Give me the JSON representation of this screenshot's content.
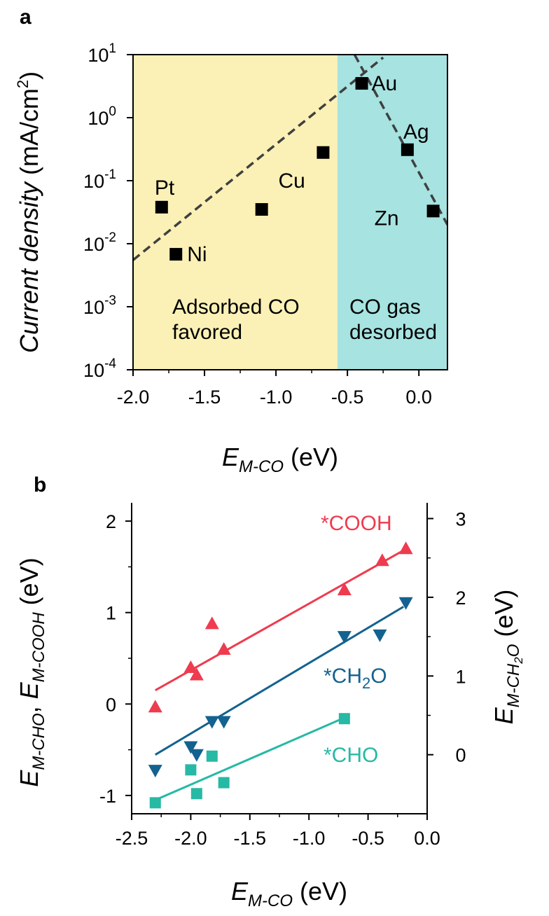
{
  "colors": {
    "adsorbed_region": "#fbf1b6",
    "desorbed_region": "#a6e3e1",
    "cooh": "#ef3b4f",
    "ch2o": "#13628f",
    "cho": "#26b9a5",
    "trend_dashed": "#404040"
  },
  "chart_data": [
    {
      "panel": "a",
      "type": "scatter",
      "x_label": {
        "main": "E",
        "sub": "M-CO",
        "unit": " (eV)"
      },
      "y_label": {
        "italic": "Current density",
        "unit": " (mA/cm",
        "sup": "2",
        "close": ")"
      },
      "xlim": [
        -2.0,
        0.2
      ],
      "ylim_log10": [
        -4,
        1
      ],
      "y_scale": "log",
      "x_ticks": [
        "-2.0",
        "-1.5",
        "-1.0",
        "-0.5",
        "0.0"
      ],
      "x_tick_values": [
        -2.0,
        -1.5,
        -1.0,
        -0.5,
        0.0
      ],
      "y_ticks": [
        {
          "base": "10",
          "exp": "1",
          "value": 1
        },
        {
          "base": "10",
          "exp": "0",
          "value": 0
        },
        {
          "base": "10",
          "exp": "-1",
          "value": -1
        },
        {
          "base": "10",
          "exp": "-2",
          "value": -2
        },
        {
          "base": "10",
          "exp": "-3",
          "value": -3
        },
        {
          "base": "10",
          "exp": "-4",
          "value": -4
        }
      ],
      "regions": [
        {
          "x_from": -2.0,
          "x_to": -0.57,
          "text_line1": "Adsorbed CO",
          "text_line2": "favored"
        },
        {
          "x_from": -0.57,
          "x_to": 0.2,
          "text_line1": "CO gas",
          "text_line2": "desorbed"
        }
      ],
      "points": [
        {
          "label": "Pt",
          "x": -1.8,
          "y": 0.038
        },
        {
          "label": "Ni",
          "x": -1.7,
          "y": 0.0068
        },
        {
          "label": "",
          "x": -1.1,
          "y": 0.035
        },
        {
          "label": "Cu",
          "x": -0.67,
          "y": 0.28
        },
        {
          "label": "Au",
          "x": -0.4,
          "y": 3.5
        },
        {
          "label": "Ag",
          "x": -0.08,
          "y": 0.31
        },
        {
          "label": "Zn",
          "x": 0.1,
          "y": 0.033
        }
      ],
      "trend_lines": [
        {
          "x": [
            -2.0,
            -0.25
          ],
          "y": [
            0.0055,
            9.0
          ]
        },
        {
          "x": [
            -0.45,
            0.2
          ],
          "y": [
            10.0,
            0.02
          ]
        }
      ]
    },
    {
      "panel": "b",
      "type": "scatter",
      "x_label": {
        "main": "E",
        "sub": "M-CO",
        "unit": " (eV)"
      },
      "y_left_label": {
        "e1": "E",
        "s1": "M-CHO",
        "comma": ", ",
        "e2": "E",
        "s2": "M-COOH",
        "unit": " (eV)"
      },
      "y_right_label": {
        "main": "E",
        "sub": "M-CH2O",
        "unit": " (eV)"
      },
      "xlim": [
        -2.5,
        0.0
      ],
      "ylim_left": [
        -1.2,
        2.2
      ],
      "ylim_right": [
        -0.75,
        3.2
      ],
      "x_ticks": [
        "-2.5",
        "-2.0",
        "-1.5",
        "-1.0",
        "-0.5",
        "0.0"
      ],
      "x_tick_values": [
        -2.5,
        -2.0,
        -1.5,
        -1.0,
        -0.5,
        0.0
      ],
      "y_left_ticks": [
        "-1",
        "0",
        "1",
        "2"
      ],
      "y_left_tick_values": [
        -1,
        0,
        1,
        2
      ],
      "y_right_ticks": [
        "0",
        "1",
        "2",
        "3"
      ],
      "y_right_tick_values": [
        0,
        1,
        2,
        3
      ],
      "series": [
        {
          "name": "*COOH",
          "marker": "triangle-up",
          "axis": "left",
          "x": [
            -2.3,
            -2.0,
            -1.95,
            -1.82,
            -1.72,
            -0.7,
            -0.38,
            -0.18
          ],
          "y": [
            -0.03,
            0.4,
            0.32,
            0.88,
            0.6,
            1.25,
            1.57,
            1.7
          ],
          "fit_x": [
            -2.3,
            -0.2
          ],
          "fit_y": [
            0.15,
            1.68
          ]
        },
        {
          "name": "*CH2O",
          "marker": "triangle-down",
          "axis": "right",
          "x": [
            -2.3,
            -2.0,
            -1.95,
            -1.82,
            -1.72,
            -0.7,
            -0.4,
            -0.18
          ],
          "y": [
            -0.2,
            0.1,
            0.0,
            0.42,
            0.42,
            1.5,
            1.52,
            1.93
          ],
          "fit_x": [
            -2.3,
            -0.2
          ],
          "fit_y": [
            0.0,
            1.88
          ]
        },
        {
          "name": "*CHO",
          "marker": "square",
          "axis": "left",
          "x": [
            -2.3,
            -2.0,
            -1.95,
            -1.82,
            -1.72,
            -0.7
          ],
          "y": [
            -1.08,
            -0.72,
            -0.98,
            -0.57,
            -0.86,
            -0.16
          ],
          "fit_x": [
            -2.3,
            -0.7
          ],
          "fit_y": [
            -1.05,
            -0.15
          ]
        }
      ],
      "series_label_parts": [
        {
          "t1": "*COOH",
          "sub": "",
          "t2": ""
        },
        {
          "t1": "*CH",
          "sub": "2",
          "t2": "O"
        },
        {
          "t1": "*CHO",
          "sub": "",
          "t2": ""
        }
      ]
    }
  ]
}
